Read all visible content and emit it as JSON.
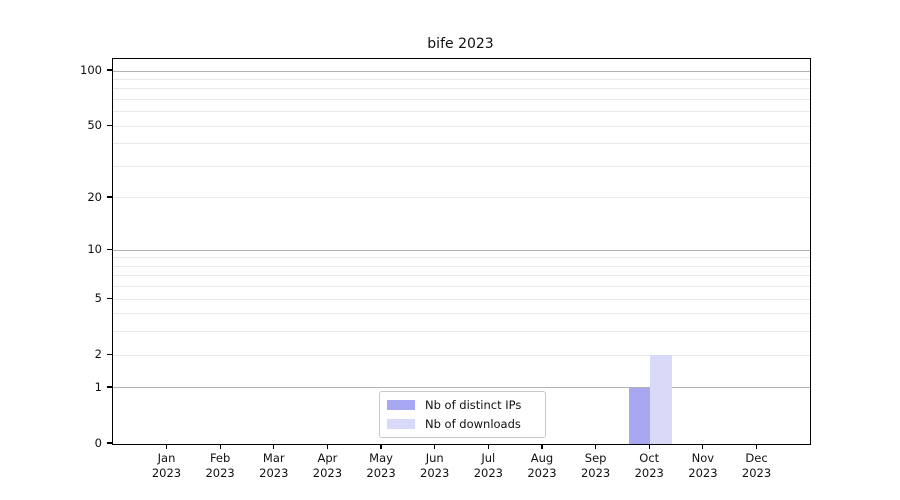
{
  "title": "bife 2023",
  "chart_data": {
    "type": "bar",
    "title": "bife 2023",
    "categories": [
      "Jan 2023",
      "Feb 2023",
      "Mar 2023",
      "Apr 2023",
      "May 2023",
      "Jun 2023",
      "Jul 2023",
      "Aug 2023",
      "Sep 2023",
      "Oct 2023",
      "Nov 2023",
      "Dec 2023"
    ],
    "x_ticks": [
      {
        "month": "Jan",
        "year": "2023"
      },
      {
        "month": "Feb",
        "year": "2023"
      },
      {
        "month": "Mar",
        "year": "2023"
      },
      {
        "month": "Apr",
        "year": "2023"
      },
      {
        "month": "May",
        "year": "2023"
      },
      {
        "month": "Jun",
        "year": "2023"
      },
      {
        "month": "Jul",
        "year": "2023"
      },
      {
        "month": "Aug",
        "year": "2023"
      },
      {
        "month": "Sep",
        "year": "2023"
      },
      {
        "month": "Oct",
        "year": "2023"
      },
      {
        "month": "Nov",
        "year": "2023"
      },
      {
        "month": "Dec",
        "year": "2023"
      }
    ],
    "series": [
      {
        "name": "Nb of distinct IPs",
        "color": "#a7a7f2",
        "values": [
          0,
          0,
          0,
          0,
          0,
          0,
          0,
          0,
          0,
          1,
          0,
          0
        ]
      },
      {
        "name": "Nb of downloads",
        "color": "#d9d9f8",
        "values": [
          0,
          0,
          0,
          0,
          0,
          0,
          0,
          0,
          0,
          2,
          0,
          0
        ]
      }
    ],
    "yscale": "log1p",
    "yticks": [
      0,
      1,
      2,
      5,
      10,
      20,
      50,
      100
    ],
    "yticks_minor": [
      3,
      4,
      6,
      7,
      8,
      9,
      30,
      40,
      60,
      70,
      80,
      90
    ],
    "grid_emphasis_ticks": [
      1,
      10,
      100
    ],
    "ylim": [
      0,
      113
    ],
    "grid": true,
    "legend_position": "lower center",
    "xlabel": "",
    "ylabel": ""
  },
  "colors": {
    "grid_major": "#b3b3b3",
    "grid_minor": "#e9e9e9",
    "spine": "#000000",
    "legend_border": "#c9c9c9",
    "background": "#ffffff"
  }
}
